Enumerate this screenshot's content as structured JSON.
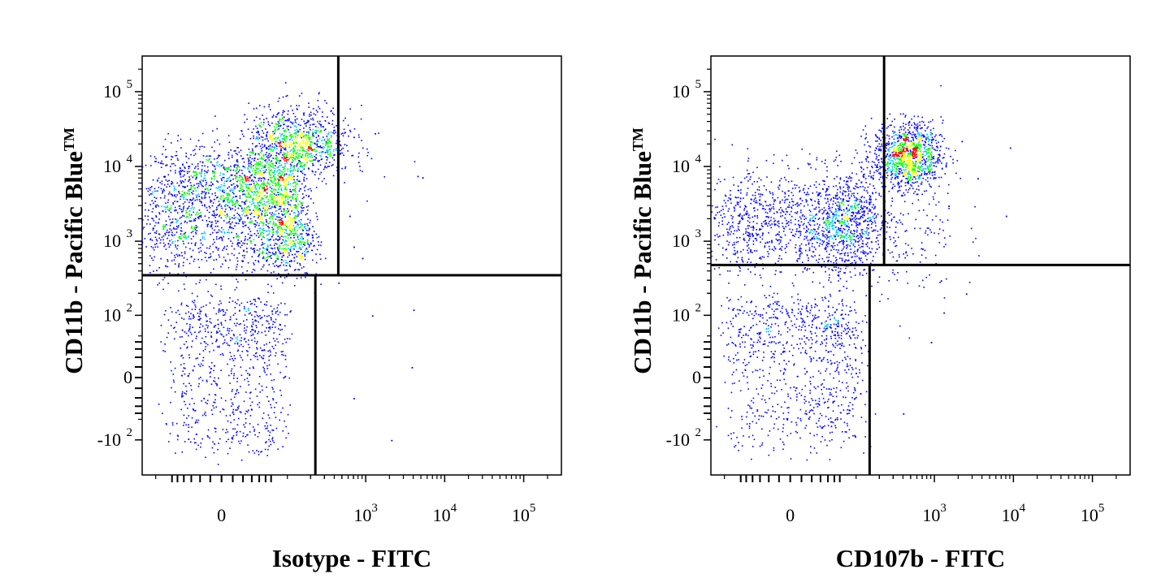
{
  "chart_data": [
    {
      "type": "scatter",
      "title": "",
      "xlabel": "Isotype - FITC",
      "ylabel": "CD11b - Pacific Blue",
      "ylabel_tm": "TM",
      "xscale": "biexponential",
      "yscale": "biexponential",
      "xlim": [
        -150,
        300000
      ],
      "ylim": [
        -300,
        300000
      ],
      "x_ticks": [
        {
          "base": "0",
          "exp": ""
        },
        {
          "base": "10",
          "exp": "3"
        },
        {
          "base": "10",
          "exp": "4"
        },
        {
          "base": "10",
          "exp": "5"
        }
      ],
      "y_ticks": [
        {
          "base": "-10",
          "exp": "2"
        },
        {
          "base": "0",
          "exp": ""
        },
        {
          "base": "10",
          "exp": "2"
        },
        {
          "base": "10",
          "exp": "3"
        },
        {
          "base": "10",
          "exp": "4"
        },
        {
          "base": "10",
          "exp": "5"
        }
      ],
      "gates": {
        "y_split": 350,
        "x_split_upper": 450,
        "x_split_lower": 230
      },
      "density_colors": [
        "#0000ff",
        "#00c8ff",
        "#00ff00",
        "#ffff00",
        "#ff0000"
      ],
      "populations": [
        {
          "name": "",
          "x_center": 20,
          "x_spread": 60,
          "y_center": 5000,
          "y_spread": 0.3,
          "count": 1500
        },
        {
          "name": "",
          "x_center": 40,
          "x_spread": 80,
          "y_center": 1200,
          "y_spread": 0.3,
          "count": 1100
        },
        {
          "name": "",
          "x_center": 130,
          "x_spread": 0.35,
          "y_center": 20000,
          "y_spread": 0.25,
          "count": 900
        },
        {
          "name": "",
          "x_center": 10,
          "x_spread": 40,
          "y_center": 20,
          "y_spread": 70,
          "count": 800
        }
      ],
      "outliers": [
        [
          700,
          25000
        ],
        [
          1300,
          28000
        ],
        [
          4500,
          7500
        ],
        [
          5200,
          7200
        ],
        [
          620,
          2200
        ],
        [
          700,
          850
        ],
        [
          900,
          600
        ],
        [
          450,
          280
        ],
        [
          1200,
          100
        ],
        [
          4000,
          120
        ],
        [
          700,
          -20
        ],
        [
          3800,
          10
        ],
        [
          2100,
          -100
        ]
      ]
    },
    {
      "type": "scatter",
      "title": "",
      "xlabel": "CD107b - FITC",
      "ylabel": "CD11b - Pacific Blue",
      "ylabel_tm": "TM",
      "xscale": "biexponential",
      "yscale": "biexponential",
      "xlim": [
        -150,
        300000
      ],
      "ylim": [
        -300,
        300000
      ],
      "x_ticks": [
        {
          "base": "0",
          "exp": ""
        },
        {
          "base": "10",
          "exp": "3"
        },
        {
          "base": "10",
          "exp": "4"
        },
        {
          "base": "10",
          "exp": "5"
        }
      ],
      "y_ticks": [
        {
          "base": "-10",
          "exp": "2"
        },
        {
          "base": "0",
          "exp": ""
        },
        {
          "base": "10",
          "exp": "2"
        },
        {
          "base": "10",
          "exp": "3"
        },
        {
          "base": "10",
          "exp": "4"
        },
        {
          "base": "10",
          "exp": "5"
        }
      ],
      "gates": {
        "y_split": 480,
        "x_split_upper": 230,
        "x_split_lower": 150
      },
      "density_colors": [
        "#0000ff",
        "#00c8ff",
        "#00ff00",
        "#ffff00",
        "#ff0000"
      ],
      "populations": [
        {
          "name": "",
          "x_center": 30,
          "x_spread": 70,
          "y_center": 1800,
          "y_spread": 0.35,
          "count": 1500
        },
        {
          "name": "",
          "x_center": 450,
          "x_spread": 0.22,
          "y_center": 14000,
          "y_spread": 0.22,
          "count": 1100
        },
        {
          "name": "",
          "x_center": 10,
          "x_spread": 50,
          "y_center": 30,
          "y_spread": 70,
          "count": 900
        },
        {
          "name": "",
          "x_center": 250,
          "x_spread": 0.45,
          "y_center": 1200,
          "y_spread": 0.45,
          "count": 250
        }
      ],
      "outliers": [
        [
          9000,
          18000
        ],
        [
          2200,
          22000
        ],
        [
          3500,
          7000
        ],
        [
          8000,
          2200
        ],
        [
          1500,
          3000
        ],
        [
          700,
          800
        ],
        [
          1200,
          300
        ],
        [
          2500,
          200
        ],
        [
          900,
          40
        ],
        [
          400,
          -40
        ],
        [
          1300,
          110
        ]
      ]
    }
  ]
}
